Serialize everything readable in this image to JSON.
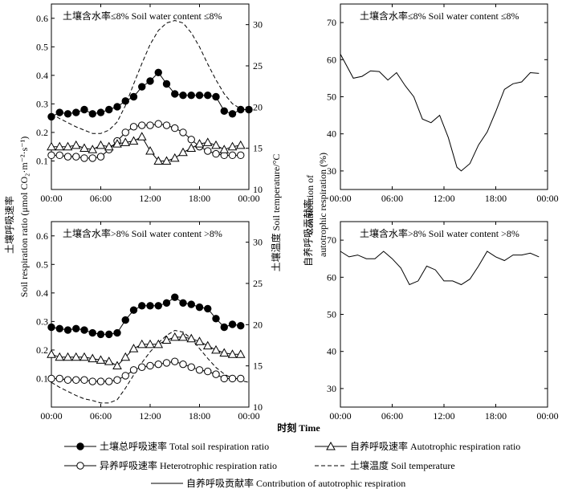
{
  "chart_data": {
    "type": "line",
    "x_label": "时刻 Time",
    "left_axis_label": "土壤呼吸速率 Soil respiration ratio (μmol CO₂·m⁻²·s⁻¹)",
    "left_axis_label_cn": "土壤呼吸速率",
    "left_axis_label_en": "Soil respiration ratio (μmol CO₂·m⁻²·s⁻¹)",
    "right_axis_label": "土壤温度 Soil temperature/°C",
    "contribution_axis_label": "自养呼吸贡献率 Contribution of autotrophic respiration (%)",
    "contribution_axis_label_cn": "自养呼吸贡献率",
    "contribution_axis_label_en1": "Contribution of",
    "contribution_axis_label_en2": "autotrophic respiration (%)",
    "x_ticks": [
      "00:00",
      "06:00",
      "12:00",
      "18:00",
      "00:00"
    ],
    "hours": [
      0,
      1,
      2,
      3,
      4,
      5,
      6,
      7,
      8,
      9,
      10,
      11,
      12,
      13,
      14,
      15,
      16,
      17,
      18,
      19,
      20,
      21,
      22,
      23
    ],
    "temp_hours": [
      0,
      1,
      2,
      3,
      4,
      5,
      6,
      7,
      8,
      9,
      10,
      11,
      12,
      13,
      14,
      15,
      16,
      17,
      18,
      19,
      20,
      21,
      22,
      23,
      24
    ],
    "respiration_ylim": [
      0,
      0.65
    ],
    "respiration_ticks": [
      0.1,
      0.2,
      0.3,
      0.4,
      0.5,
      0.6
    ],
    "temperature_ylim": [
      10,
      32.5
    ],
    "temperature_ticks": [
      10,
      15,
      20,
      25,
      30
    ],
    "contribution_ylim": [
      25,
      75
    ],
    "contribution_ticks": [
      30,
      40,
      50,
      60,
      70
    ],
    "panels": [
      {
        "title": "土壤含水率≤8% Soil water content ≤8%",
        "total": [
          0.255,
          0.27,
          0.265,
          0.27,
          0.28,
          0.265,
          0.27,
          0.28,
          0.29,
          0.31,
          0.325,
          0.36,
          0.38,
          0.41,
          0.37,
          0.335,
          0.33,
          0.33,
          0.33,
          0.33,
          0.325,
          0.275,
          0.265,
          0.28,
          0.28
        ],
        "total_hours": [
          0,
          1,
          2,
          3,
          4,
          5,
          6,
          7,
          8,
          9,
          10,
          11,
          12,
          13,
          14,
          15,
          16,
          17,
          18,
          19,
          20,
          21,
          22,
          23,
          24
        ],
        "autotrophic": [
          0.15,
          0.15,
          0.15,
          0.155,
          0.145,
          0.14,
          0.155,
          0.15,
          0.16,
          0.165,
          0.17,
          0.185,
          0.135,
          0.1,
          0.1,
          0.11,
          0.13,
          0.145,
          0.16,
          0.165,
          0.155,
          0.14,
          0.15,
          0.155
        ],
        "heterotrophic": [
          0.12,
          0.12,
          0.115,
          0.115,
          0.11,
          0.11,
          0.115,
          0.14,
          0.17,
          0.2,
          0.22,
          0.225,
          0.225,
          0.23,
          0.225,
          0.215,
          0.2,
          0.175,
          0.15,
          0.135,
          0.125,
          0.12,
          0.12,
          0.12
        ],
        "temperature": [
          19.2,
          18.6,
          18.1,
          17.6,
          17.2,
          16.8,
          16.8,
          17.2,
          18.2,
          20.2,
          22.8,
          25.3,
          27.6,
          29.3,
          30.2,
          30.5,
          30.2,
          29.0,
          27.3,
          25.2,
          23.3,
          21.6,
          20.4,
          19.8,
          19.6
        ],
        "contribution": [
          61.5,
          55,
          55.5,
          57,
          56.8,
          54.5,
          56.5,
          53,
          50,
          44,
          43,
          45,
          39,
          31,
          30,
          32,
          37,
          40.5,
          46,
          52,
          53.5,
          54,
          56.5,
          56.3
        ],
        "contribution_hours": [
          0,
          1.5,
          2.5,
          3.5,
          4.5,
          5.5,
          6.5,
          7.5,
          8.5,
          9.5,
          10.5,
          11.5,
          12.5,
          13.5,
          14,
          15,
          16,
          17,
          18,
          19,
          20,
          21,
          22,
          23
        ]
      },
      {
        "title": "土壤含水率>8% Soil water content >8%",
        "total": [
          0.28,
          0.275,
          0.27,
          0.275,
          0.27,
          0.26,
          0.255,
          0.255,
          0.26,
          0.305,
          0.34,
          0.355,
          0.355,
          0.355,
          0.365,
          0.385,
          0.365,
          0.36,
          0.35,
          0.345,
          0.31,
          0.28,
          0.29,
          0.285
        ],
        "total_hours": [
          0,
          1,
          2,
          3,
          4,
          5,
          6,
          7,
          8,
          9,
          10,
          11,
          12,
          13,
          14,
          15,
          16,
          17,
          18,
          19,
          20,
          21,
          22,
          23
        ],
        "autotrophic": [
          0.185,
          0.175,
          0.175,
          0.175,
          0.175,
          0.17,
          0.165,
          0.16,
          0.145,
          0.175,
          0.205,
          0.22,
          0.22,
          0.22,
          0.235,
          0.245,
          0.245,
          0.24,
          0.23,
          0.215,
          0.2,
          0.19,
          0.185,
          0.185
        ],
        "heterotrophic": [
          0.1,
          0.1,
          0.095,
          0.095,
          0.095,
          0.09,
          0.09,
          0.09,
          0.095,
          0.11,
          0.13,
          0.14,
          0.145,
          0.15,
          0.155,
          0.16,
          0.15,
          0.14,
          0.13,
          0.125,
          0.115,
          0.1,
          0.1,
          0.1
        ],
        "temperature": [
          13.0,
          12.4,
          11.9,
          11.4,
          11.0,
          10.8,
          10.5,
          10.5,
          10.9,
          12.3,
          13.9,
          15.4,
          16.7,
          17.8,
          18.7,
          19.3,
          19.1,
          18.3,
          17.1,
          15.9,
          14.8,
          14.0,
          13.5,
          13.2,
          13.0
        ],
        "contribution": [
          67,
          65.5,
          66,
          65,
          65,
          67,
          65,
          62.5,
          58,
          59,
          63,
          62,
          59,
          59,
          58,
          59.5,
          63,
          67,
          65.5,
          64.5,
          66,
          66,
          66.5,
          65.5
        ],
        "contribution_hours": [
          0,
          1,
          2,
          3,
          4,
          5,
          6,
          7,
          8,
          9,
          10,
          11,
          12,
          13,
          14,
          15,
          16,
          17,
          18,
          19,
          20,
          21,
          22,
          23
        ]
      }
    ],
    "legend": [
      {
        "label": "土壤总呼吸速率 Total soil respiration ratio",
        "style": "filled-circle"
      },
      {
        "label": "自养呼吸速率 Autotrophic respiration ratio",
        "style": "open-triangle"
      },
      {
        "label": "异养呼吸速率 Heterotrophic respiration ratio",
        "style": "open-circle"
      },
      {
        "label": "土壤温度 Soil temperature",
        "style": "dashed-line"
      },
      {
        "label": "自养呼吸贡献率 Contribution of autotrophic respiration",
        "style": "solid-line"
      }
    ]
  },
  "colors": {
    "ink": "#000000",
    "background": "#ffffff"
  }
}
